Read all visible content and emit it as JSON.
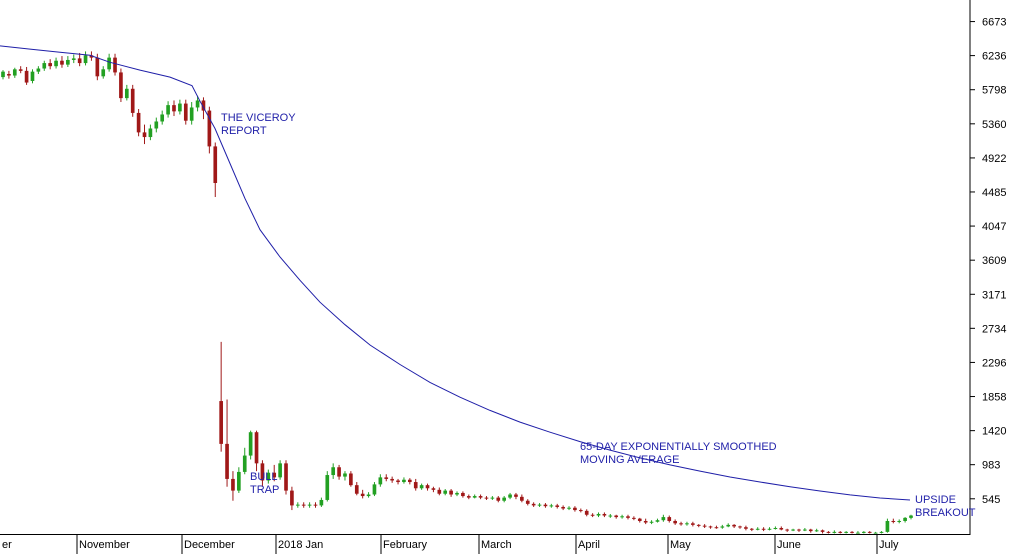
{
  "chart_data": {
    "type": "candlestick",
    "yticks": [
      545,
      983,
      1420,
      1858,
      2296,
      2734,
      3171,
      3609,
      4047,
      4485,
      4922,
      5360,
      5798,
      6236,
      6673
    ],
    "ylim": [
      80,
      6950
    ],
    "x_categories": [
      "er",
      "November",
      "December",
      "2018 Jan",
      "February",
      "March",
      "April",
      "May",
      "June",
      "July"
    ],
    "grid": false,
    "colors": {
      "up": "#22a022",
      "down": "#a01818",
      "ema": "#1f1fa8",
      "axis": "#000000"
    },
    "annotations": [
      {
        "lines": [
          "THE VICEROY",
          "REPORT"
        ]
      },
      {
        "lines": [
          "BULL",
          "TRAP"
        ]
      },
      {
        "lines": [
          "65-DAY EXPONENTIALLY SMOOTHED",
          "MOVING AVERAGE"
        ]
      },
      {
        "lines": [
          "UPSIDE",
          "BREAKOUT"
        ]
      }
    ],
    "series": [
      {
        "type": "ema",
        "points": [
          [
            0,
            6360
          ],
          [
            30,
            6320
          ],
          [
            60,
            6280
          ],
          [
            90,
            6240
          ],
          [
            110,
            6150
          ],
          [
            140,
            6050
          ],
          [
            170,
            5960
          ],
          [
            192,
            5850
          ],
          [
            200,
            5650
          ],
          [
            215,
            5300
          ],
          [
            230,
            4850
          ],
          [
            245,
            4400
          ],
          [
            260,
            4000
          ],
          [
            280,
            3650
          ],
          [
            300,
            3350
          ],
          [
            320,
            3070
          ],
          [
            345,
            2780
          ],
          [
            370,
            2520
          ],
          [
            400,
            2270
          ],
          [
            430,
            2040
          ],
          [
            460,
            1850
          ],
          [
            490,
            1680
          ],
          [
            520,
            1530
          ],
          [
            550,
            1400
          ],
          [
            580,
            1280
          ],
          [
            610,
            1170
          ],
          [
            640,
            1070
          ],
          [
            670,
            980
          ],
          [
            700,
            900
          ],
          [
            730,
            825
          ],
          [
            760,
            760
          ],
          [
            790,
            700
          ],
          [
            820,
            645
          ],
          [
            850,
            595
          ],
          [
            880,
            555
          ],
          [
            910,
            530
          ]
        ]
      }
    ],
    "candles": [
      [
        5960,
        6030,
        5930,
        6050
      ],
      [
        6000,
        5980,
        5940,
        6040
      ],
      [
        5980,
        6060,
        5950,
        6080
      ],
      [
        6060,
        6040,
        6010,
        6100
      ],
      [
        6040,
        5890,
        5860,
        6090
      ],
      [
        5910,
        6030,
        5880,
        6060
      ],
      [
        6030,
        6070,
        6000,
        6100
      ],
      [
        6070,
        6140,
        6040,
        6170
      ],
      [
        6140,
        6100,
        6060,
        6190
      ],
      [
        6100,
        6170,
        6070,
        6210
      ],
      [
        6170,
        6120,
        6080,
        6230
      ],
      [
        6120,
        6180,
        6090,
        6230
      ],
      [
        6180,
        6200,
        6140,
        6250
      ],
      [
        6200,
        6140,
        6100,
        6270
      ],
      [
        6140,
        6240,
        6110,
        6290
      ],
      [
        6240,
        6210,
        6170,
        6290
      ],
      [
        6210,
        5970,
        5920,
        6260
      ],
      [
        5970,
        6060,
        5940,
        6100
      ],
      [
        6060,
        6210,
        6030,
        6260
      ],
      [
        6210,
        6020,
        5980,
        6260
      ],
      [
        6020,
        5690,
        5640,
        6070
      ],
      [
        5690,
        5810,
        5660,
        5860
      ],
      [
        5810,
        5500,
        5450,
        5860
      ],
      [
        5500,
        5250,
        5200,
        5550
      ],
      [
        5250,
        5190,
        5100,
        5350
      ],
      [
        5190,
        5300,
        5150,
        5350
      ],
      [
        5300,
        5390,
        5250,
        5440
      ],
      [
        5390,
        5480,
        5350,
        5530
      ],
      [
        5480,
        5600,
        5440,
        5650
      ],
      [
        5600,
        5520,
        5460,
        5660
      ],
      [
        5520,
        5620,
        5480,
        5670
      ],
      [
        5620,
        5400,
        5350,
        5670
      ],
      [
        5400,
        5570,
        5350,
        5640
      ],
      [
        5570,
        5660,
        5520,
        5720
      ],
      [
        5660,
        5530,
        5420,
        5700
      ],
      [
        5530,
        5070,
        4980,
        5580
      ],
      [
        5070,
        4600,
        4420,
        5120
      ],
      [
        1800,
        1250,
        1150,
        2560
      ],
      [
        1250,
        800,
        700,
        1820
      ],
      [
        800,
        650,
        520,
        900
      ],
      [
        650,
        890,
        620,
        950
      ],
      [
        890,
        1100,
        860,
        1200
      ],
      [
        1100,
        1400,
        1050,
        1420
      ],
      [
        1400,
        1000,
        900,
        1420
      ],
      [
        1000,
        780,
        700,
        1040
      ],
      [
        780,
        880,
        740,
        920
      ],
      [
        880,
        820,
        770,
        980
      ],
      [
        820,
        1000,
        790,
        1040
      ],
      [
        1000,
        650,
        600,
        1040
      ],
      [
        650,
        460,
        400,
        700
      ],
      [
        460,
        470,
        430,
        500
      ],
      [
        470,
        460,
        430,
        500
      ],
      [
        460,
        470,
        430,
        500
      ],
      [
        470,
        460,
        430,
        500
      ],
      [
        460,
        530,
        440,
        560
      ],
      [
        530,
        850,
        510,
        900
      ],
      [
        850,
        950,
        800,
        1000
      ],
      [
        950,
        830,
        790,
        980
      ],
      [
        830,
        870,
        780,
        900
      ],
      [
        870,
        720,
        700,
        900
      ],
      [
        720,
        610,
        590,
        760
      ],
      [
        610,
        580,
        550,
        660
      ],
      [
        580,
        600,
        560,
        630
      ],
      [
        600,
        730,
        580,
        760
      ],
      [
        730,
        820,
        700,
        860
      ],
      [
        820,
        800,
        770,
        860
      ],
      [
        800,
        780,
        750,
        830
      ],
      [
        780,
        760,
        730,
        800
      ],
      [
        760,
        790,
        740,
        820
      ],
      [
        790,
        760,
        730,
        810
      ],
      [
        760,
        680,
        650,
        800
      ],
      [
        680,
        720,
        660,
        740
      ],
      [
        720,
        680,
        650,
        740
      ],
      [
        680,
        660,
        630,
        700
      ],
      [
        660,
        610,
        590,
        690
      ],
      [
        610,
        650,
        590,
        670
      ],
      [
        650,
        600,
        570,
        670
      ],
      [
        600,
        620,
        580,
        640
      ],
      [
        620,
        580,
        560,
        640
      ],
      [
        580,
        560,
        540,
        600
      ],
      [
        560,
        580,
        550,
        600
      ],
      [
        580,
        560,
        540,
        600
      ],
      [
        560,
        550,
        530,
        580
      ],
      [
        550,
        560,
        530,
        580
      ],
      [
        560,
        520,
        500,
        580
      ],
      [
        520,
        560,
        500,
        580
      ],
      [
        560,
        600,
        540,
        620
      ],
      [
        600,
        570,
        540,
        620
      ],
      [
        570,
        520,
        500,
        600
      ],
      [
        520,
        480,
        460,
        540
      ],
      [
        480,
        460,
        440,
        500
      ],
      [
        460,
        470,
        440,
        490
      ],
      [
        470,
        450,
        430,
        490
      ],
      [
        450,
        460,
        430,
        480
      ],
      [
        460,
        440,
        420,
        480
      ],
      [
        440,
        420,
        400,
        460
      ],
      [
        420,
        430,
        400,
        450
      ],
      [
        430,
        400,
        380,
        450
      ],
      [
        400,
        390,
        370,
        420
      ],
      [
        390,
        340,
        320,
        410
      ],
      [
        340,
        330,
        310,
        360
      ],
      [
        330,
        350,
        310,
        370
      ],
      [
        350,
        330,
        310,
        370
      ],
      [
        330,
        330,
        300,
        350
      ],
      [
        330,
        310,
        290,
        340
      ],
      [
        310,
        320,
        290,
        340
      ],
      [
        320,
        300,
        280,
        340
      ],
      [
        300,
        290,
        270,
        320
      ],
      [
        290,
        260,
        240,
        300
      ],
      [
        260,
        240,
        220,
        290
      ],
      [
        240,
        250,
        220,
        270
      ],
      [
        250,
        270,
        240,
        290
      ],
      [
        270,
        310,
        250,
        340
      ],
      [
        310,
        260,
        240,
        330
      ],
      [
        260,
        230,
        210,
        280
      ],
      [
        230,
        220,
        200,
        250
      ],
      [
        220,
        230,
        200,
        250
      ],
      [
        230,
        210,
        190,
        250
      ],
      [
        210,
        200,
        180,
        220
      ],
      [
        200,
        190,
        170,
        220
      ],
      [
        190,
        180,
        160,
        200
      ],
      [
        180,
        175,
        160,
        200
      ],
      [
        175,
        190,
        160,
        210
      ],
      [
        190,
        210,
        180,
        230
      ],
      [
        210,
        190,
        170,
        220
      ],
      [
        190,
        180,
        160,
        200
      ],
      [
        180,
        160,
        140,
        200
      ],
      [
        160,
        150,
        130,
        170
      ],
      [
        150,
        160,
        140,
        180
      ],
      [
        160,
        150,
        130,
        180
      ],
      [
        150,
        160,
        140,
        180
      ],
      [
        160,
        170,
        150,
        190
      ],
      [
        170,
        150,
        140,
        190
      ],
      [
        150,
        140,
        120,
        160
      ],
      [
        140,
        150,
        130,
        160
      ],
      [
        150,
        140,
        120,
        160
      ],
      [
        140,
        150,
        130,
        170
      ],
      [
        150,
        130,
        110,
        160
      ],
      [
        130,
        140,
        120,
        160
      ],
      [
        140,
        120,
        100,
        150
      ],
      [
        120,
        110,
        100,
        130
      ],
      [
        110,
        120,
        100,
        140
      ],
      [
        120,
        110,
        100,
        130
      ],
      [
        110,
        120,
        100,
        130
      ],
      [
        120,
        110,
        100,
        130
      ],
      [
        110,
        110,
        100,
        130
      ],
      [
        110,
        120,
        100,
        130
      ],
      [
        120,
        110,
        100,
        130
      ],
      [
        110,
        110,
        100,
        120
      ],
      [
        110,
        120,
        100,
        130
      ],
      [
        120,
        260,
        110,
        290
      ],
      [
        260,
        250,
        230,
        290
      ],
      [
        250,
        260,
        230,
        280
      ],
      [
        260,
        300,
        240,
        310
      ],
      [
        300,
        330,
        280,
        340
      ]
    ]
  }
}
